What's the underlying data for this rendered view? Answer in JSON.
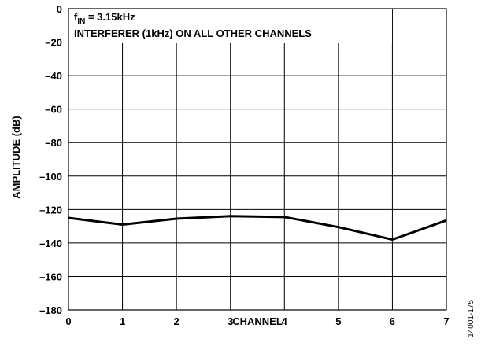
{
  "chart_data": {
    "type": "line",
    "xlabel": "CHANNEL",
    "ylabel": "AMPLITUDE (dB)",
    "xlim": [
      0,
      7
    ],
    "ylim": [
      -180,
      0
    ],
    "xticks": [
      0,
      1,
      2,
      3,
      4,
      5,
      6,
      7
    ],
    "yticks": [
      0,
      -20,
      -40,
      -60,
      -80,
      -100,
      -120,
      -140,
      -160,
      -180
    ],
    "ytick_labels": [
      "0",
      "–20",
      "–40",
      "–60",
      "–80",
      "–100",
      "–120",
      "–140",
      "–160",
      "–180"
    ],
    "grid": true,
    "series": [
      {
        "x": [
          0,
          1,
          2,
          3,
          4,
          5,
          6,
          7
        ],
        "values": [
          -125,
          -129,
          -125.5,
          -124,
          -124.5,
          -130.5,
          -138,
          -126.5
        ]
      }
    ],
    "annotations": {
      "line1_main": "f",
      "line1_sub": "IN",
      "line1_rest": " = 3.15kHz",
      "line2": "INTERFERER (1kHz) ON ALL OTHER CHANNELS"
    },
    "figure_id": "14001-175",
    "line_color": "#000000"
  }
}
